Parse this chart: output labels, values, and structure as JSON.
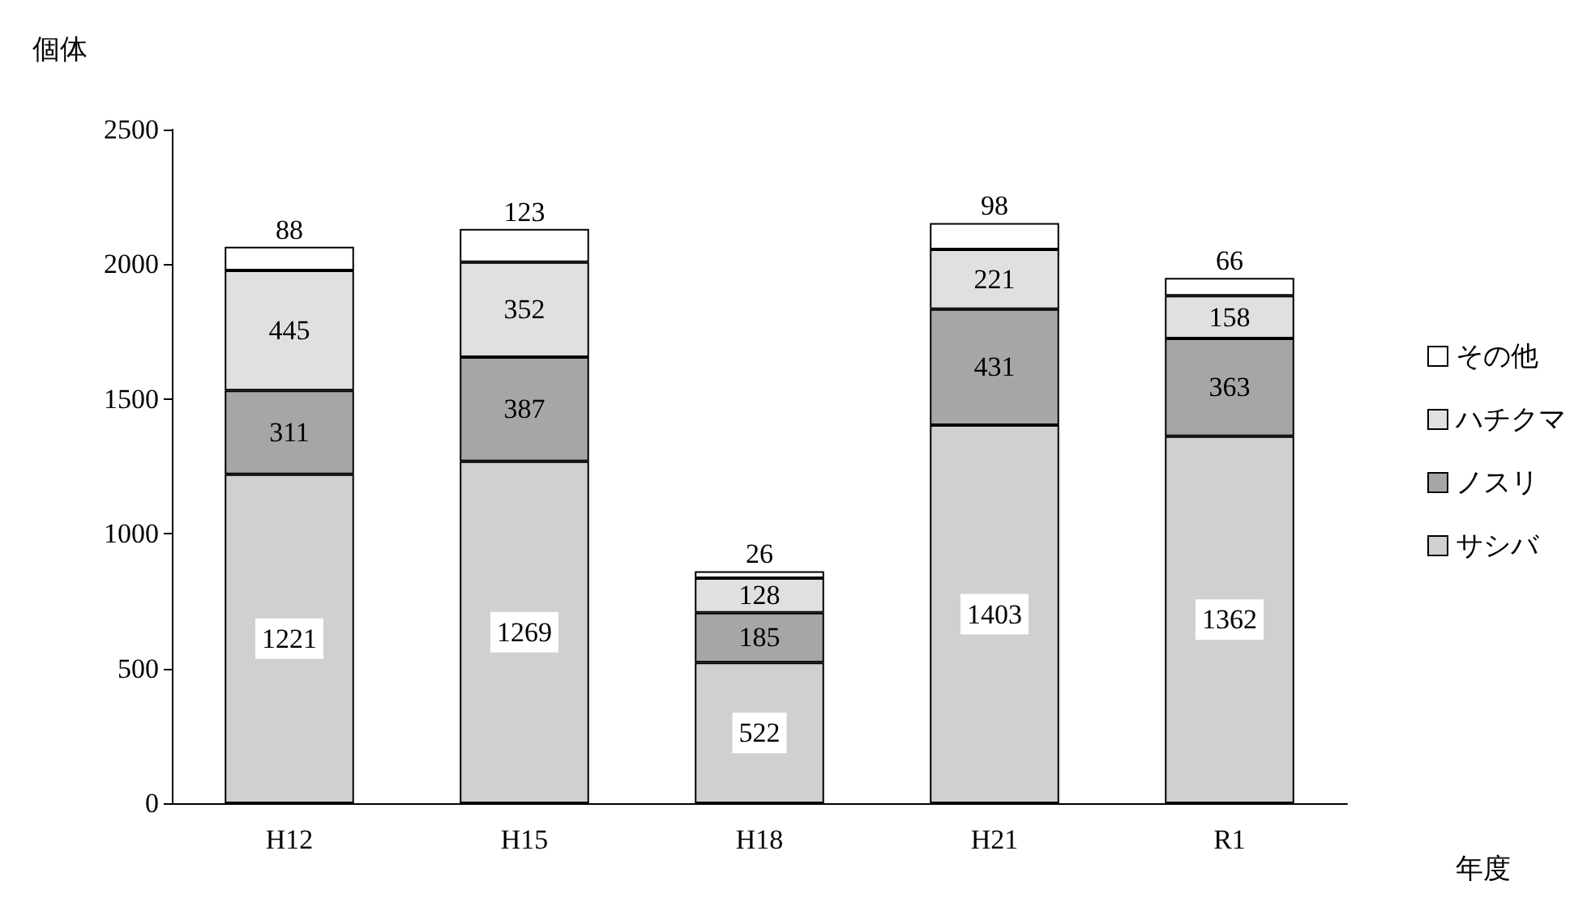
{
  "chart_data": {
    "type": "bar",
    "stacked": true,
    "ylabel": "個体",
    "xlabel": "年度",
    "categories": [
      "H12",
      "H15",
      "H18",
      "H21",
      "R1"
    ],
    "series": [
      {
        "name": "サシバ",
        "color": "#d0d0d0",
        "values": [
          1221,
          1269,
          522,
          1403,
          1362
        ]
      },
      {
        "name": "ノスリ",
        "color": "#a6a6a6",
        "values": [
          311,
          387,
          185,
          431,
          363
        ]
      },
      {
        "name": "ハチクマ",
        "color": "#e0e0e0",
        "values": [
          445,
          352,
          128,
          221,
          158
        ]
      },
      {
        "name": "その他",
        "color": "#ffffff",
        "values": [
          88,
          123,
          26,
          98,
          66
        ]
      }
    ],
    "ylim": [
      0,
      2500
    ],
    "yticks": [
      0,
      500,
      1000,
      1500,
      2000,
      2500
    ],
    "grid": false,
    "legend": "right",
    "data_labels": true
  }
}
